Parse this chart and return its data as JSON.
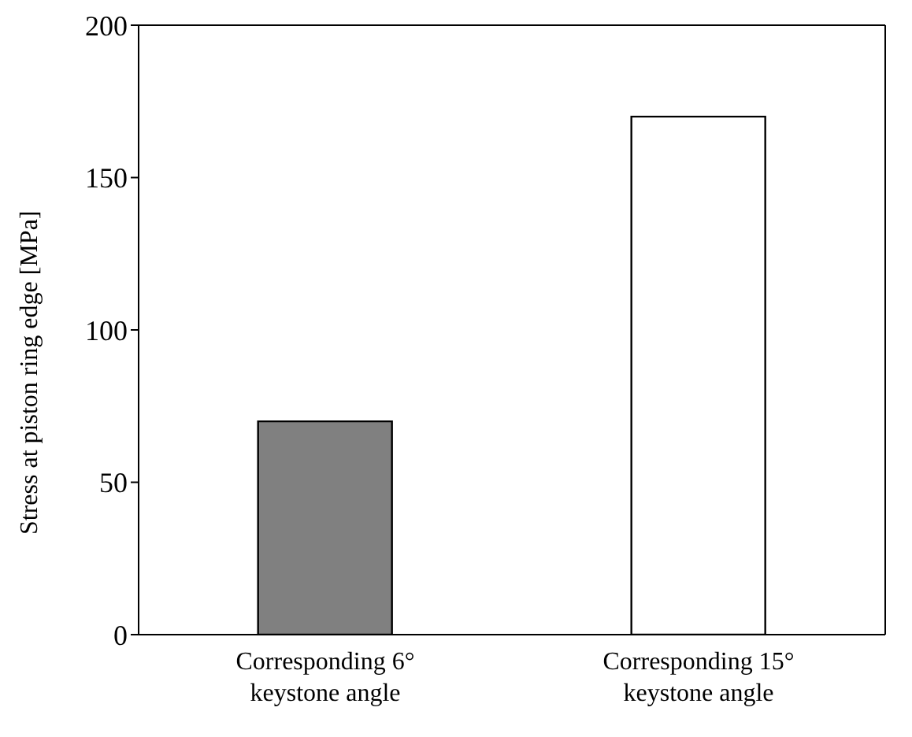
{
  "chart_data": {
    "type": "bar",
    "categories": [
      "Corresponding 6°\nkeystone angle",
      "Corresponding 15°\nkeystone angle"
    ],
    "values": [
      70,
      170
    ],
    "colors": [
      "#808080",
      "#ffffff"
    ],
    "ylabel": "Stress at piston ring edge  [MPa]",
    "ylim": [
      0,
      200
    ],
    "yticks": [
      0,
      50,
      100,
      150,
      200
    ],
    "grid": false,
    "legend": false
  }
}
